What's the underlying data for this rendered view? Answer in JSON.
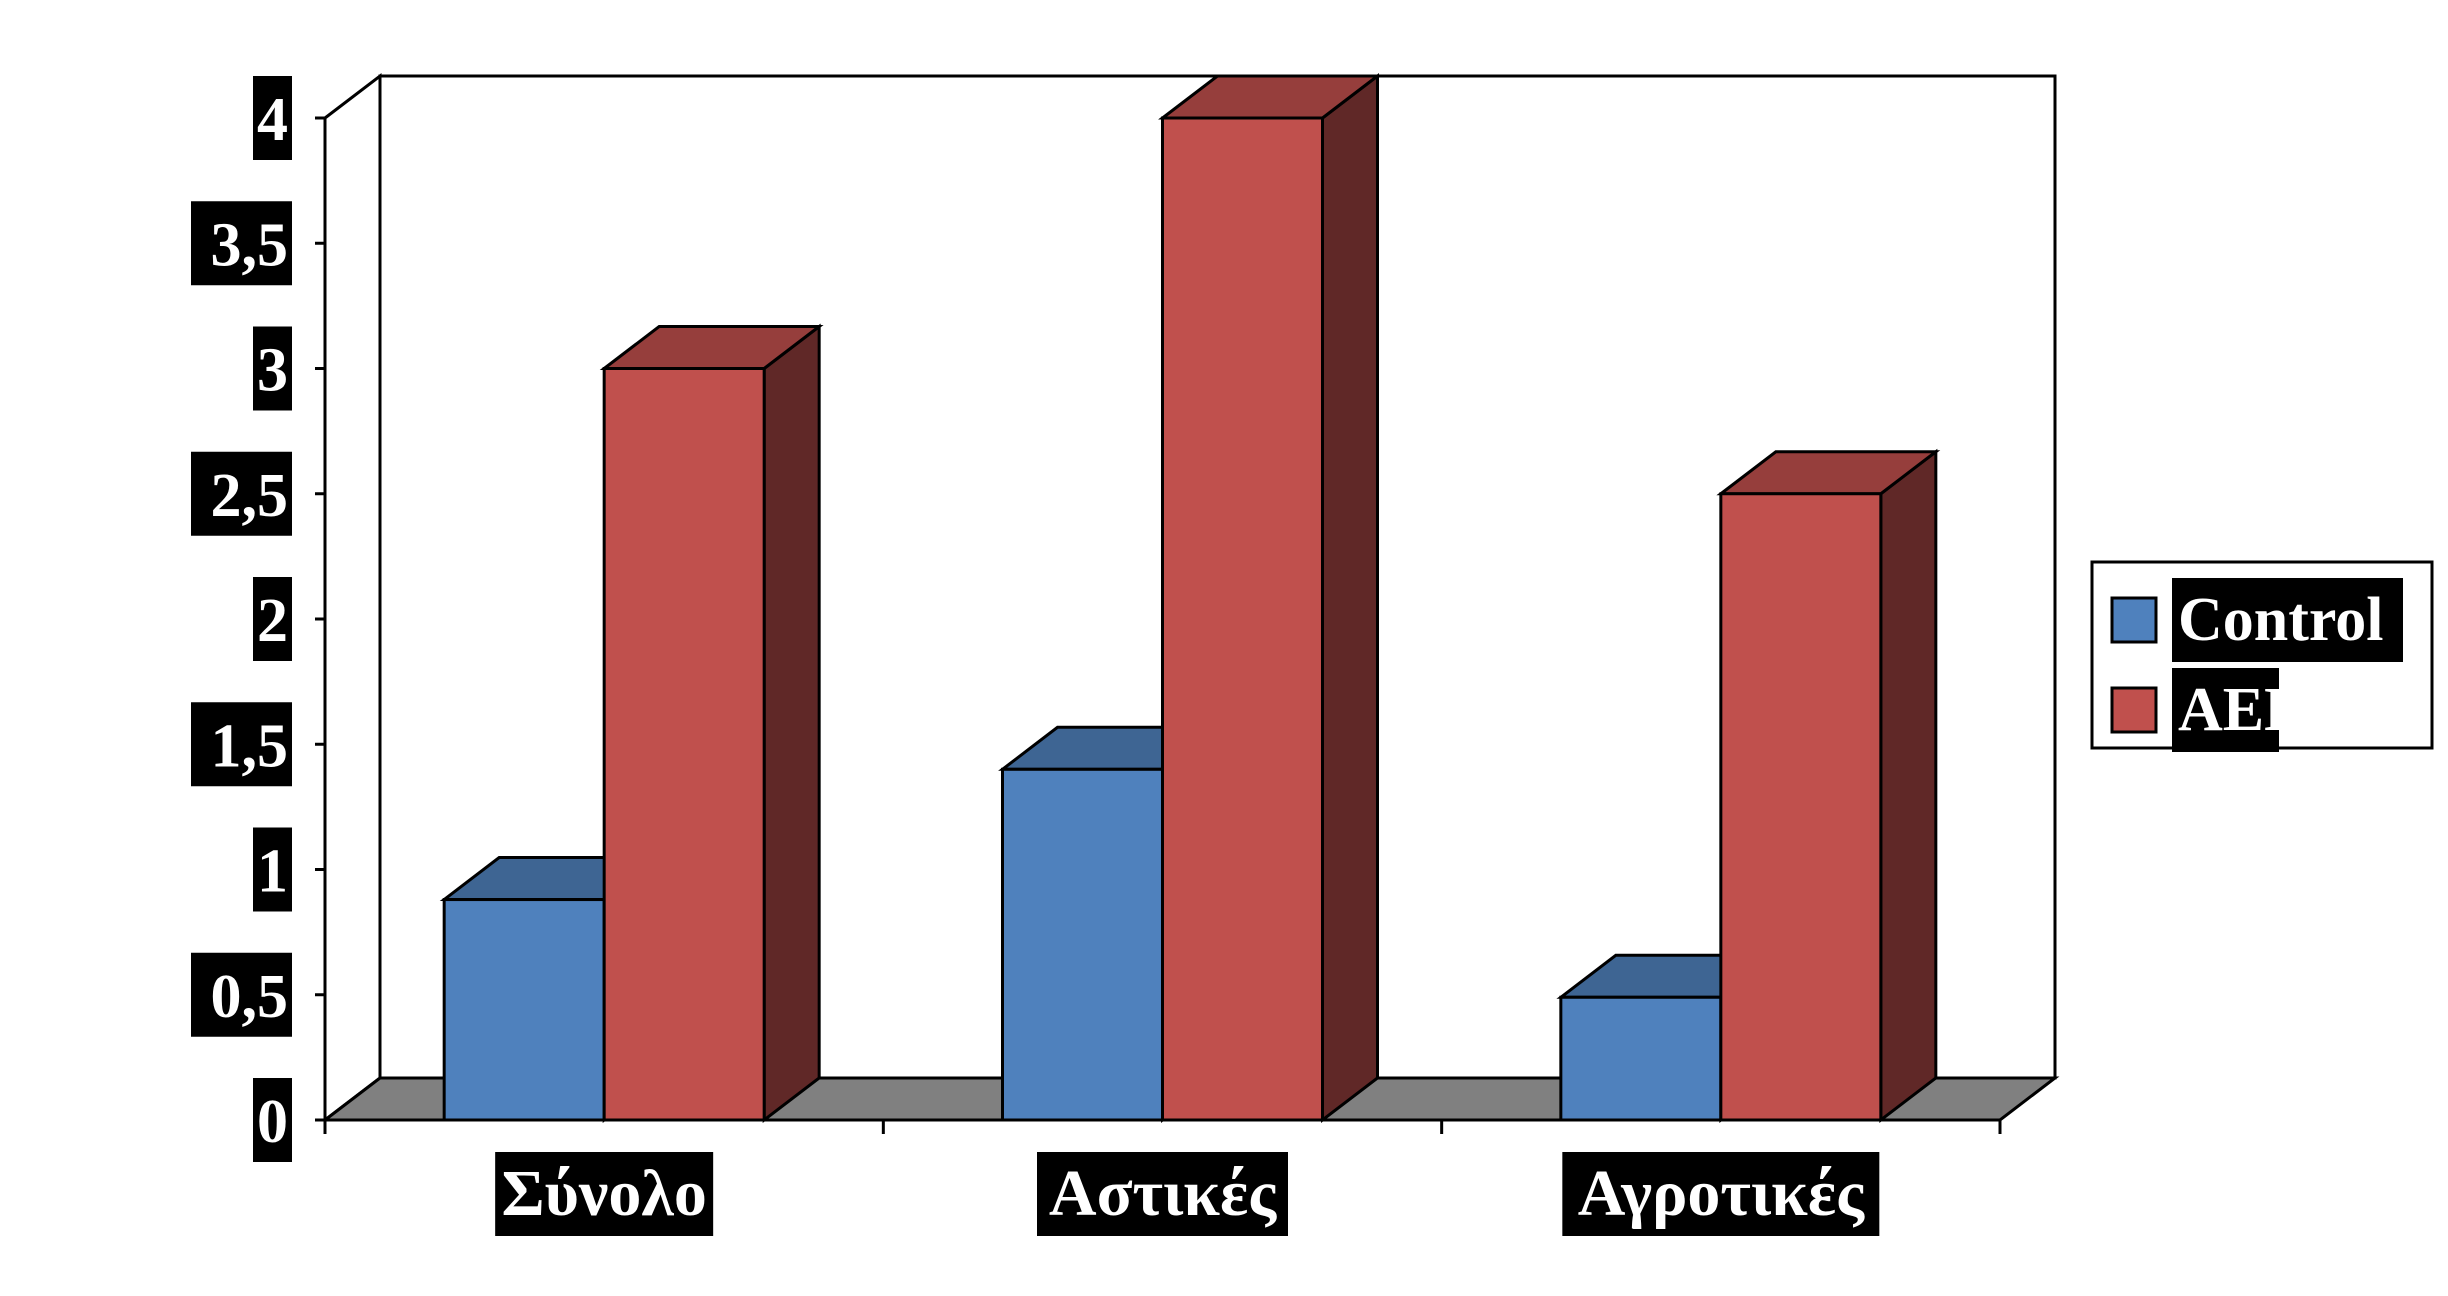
{
  "chart_data": {
    "type": "bar",
    "categories": [
      "Σύνολο",
      "Αστικές",
      "Αγροτικές"
    ],
    "series": [
      {
        "name": "Control",
        "values": [
          0.88,
          1.4,
          0.49
        ],
        "color": "#4F81BD"
      },
      {
        "name": "AED",
        "values": [
          3.0,
          4.0,
          2.5
        ],
        "color": "#C0504D"
      }
    ],
    "ylim": [
      0,
      4
    ],
    "yticks": [
      "0",
      "0,5",
      "1",
      "1,5",
      "2",
      "2,5",
      "3",
      "3,5",
      "4"
    ],
    "legend_position": "right",
    "floor_color": "#808080",
    "three_d": true
  }
}
